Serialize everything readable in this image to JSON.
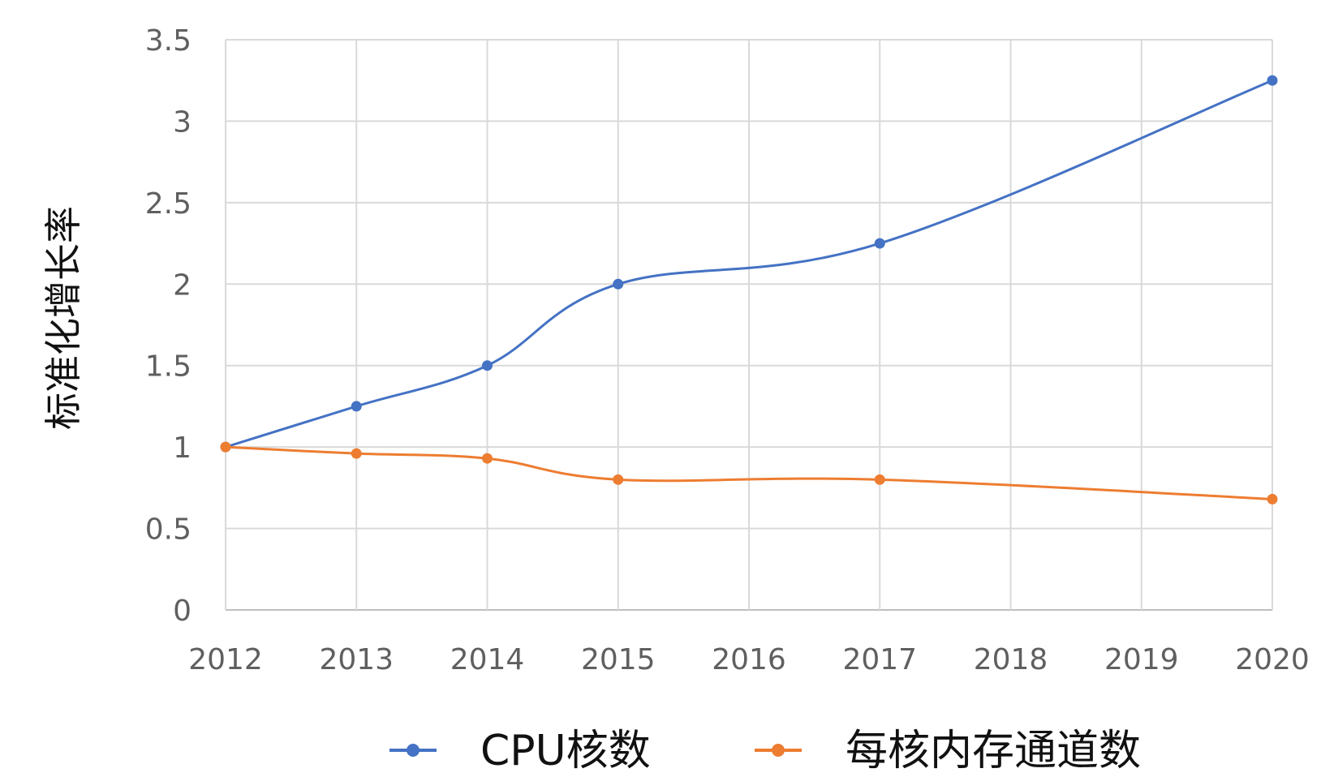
{
  "chart_data": {
    "type": "line",
    "title": "",
    "xlabel": "",
    "ylabel": "标准化增长率",
    "x": [
      "2012",
      "2013",
      "2014",
      "2015",
      "2016",
      "2017",
      "2018",
      "2019",
      "2020"
    ],
    "y_ticks": [
      "0",
      "0.5",
      "1",
      "1.5",
      "2",
      "2.5",
      "3",
      "3.5"
    ],
    "ylim": [
      0,
      3.5
    ],
    "grid": true,
    "legend_position": "bottom",
    "series": [
      {
        "name": "CPU核数",
        "color": "#4472c4",
        "smooth": true,
        "points": [
          {
            "x": "2012",
            "y": 1.0
          },
          {
            "x": "2013",
            "y": 1.25
          },
          {
            "x": "2014",
            "y": 1.5
          },
          {
            "x": "2015",
            "y": 2.0
          },
          {
            "x": "2017",
            "y": 2.25
          },
          {
            "x": "2020",
            "y": 3.25
          }
        ]
      },
      {
        "name": "每核内存通道数",
        "color": "#ed7d31",
        "smooth": true,
        "points": [
          {
            "x": "2012",
            "y": 1.0
          },
          {
            "x": "2013",
            "y": 0.96
          },
          {
            "x": "2014",
            "y": 0.93
          },
          {
            "x": "2015",
            "y": 0.8
          },
          {
            "x": "2017",
            "y": 0.8
          },
          {
            "x": "2020",
            "y": 0.68
          }
        ]
      }
    ]
  }
}
